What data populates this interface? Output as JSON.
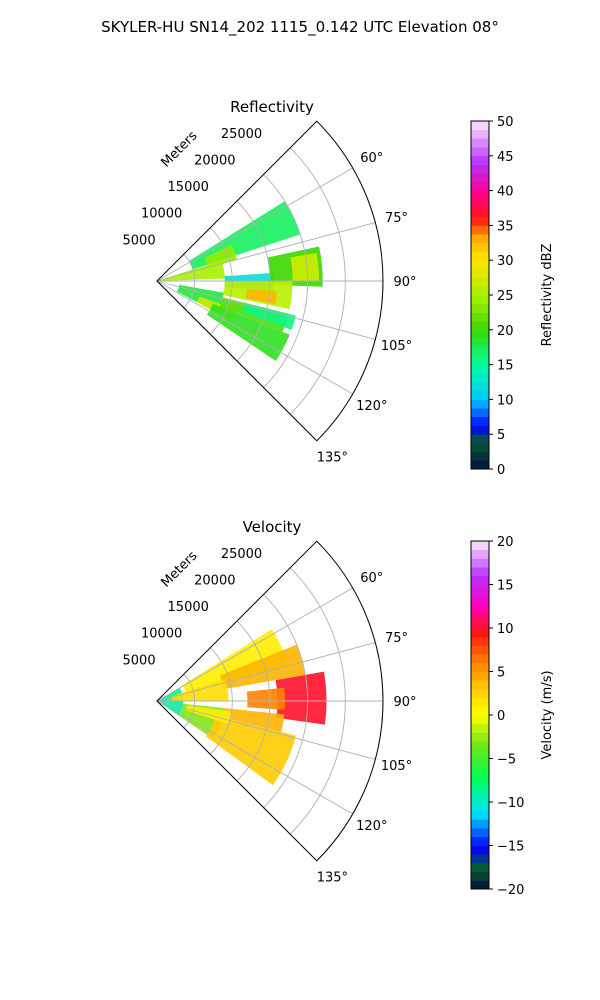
{
  "figure": {
    "suptitle": "SKYLER-HU  SN14_202  1115_0.142 UTC Elevation 08°"
  },
  "chart_data": [
    {
      "type": "heatmap",
      "title": "Reflectivity",
      "projection": "polar sector (PPI)",
      "radial_axis_label": "Meters",
      "radial_ticks": [
        5000,
        10000,
        15000,
        20000,
        25000
      ],
      "radial_tick_labels": [
        "5000",
        "10000",
        "15000",
        "20000",
        "25000"
      ],
      "rlim": [
        0,
        30000
      ],
      "azimuth_range_deg": [
        45,
        135
      ],
      "azimuth_ticks_deg": [
        60,
        75,
        90,
        105,
        120,
        135
      ],
      "azimuth_tick_labels": [
        "60°",
        "75°",
        "90°",
        "105°",
        "120°",
        "135°"
      ],
      "grid": true,
      "colorbar": {
        "label": "Reflectivity dBZ",
        "range": [
          0,
          50
        ],
        "ticks": [
          0,
          5,
          10,
          15,
          20,
          25,
          30,
          35,
          40,
          45,
          50
        ],
        "tick_labels": [
          "0",
          "5",
          "10",
          "15",
          "20",
          "25",
          "30",
          "35",
          "40",
          "45",
          "50"
        ],
        "placement": "right"
      },
      "echo_regions": [
        {
          "az": [
            58,
            72
          ],
          "r": [
            5000,
            20000
          ],
          "value": 17
        },
        {
          "az": [
            64,
            75
          ],
          "r": [
            7000,
            11000
          ],
          "value": 24
        },
        {
          "az": [
            72,
            88
          ],
          "r": [
            0,
            9000
          ],
          "value": 25
        },
        {
          "az": [
            86,
            95
          ],
          "r": [
            9000,
            15500
          ],
          "value": 12
        },
        {
          "az": [
            78,
            92
          ],
          "r": [
            15000,
            22000
          ],
          "value": 20
        },
        {
          "az": [
            80,
            90
          ],
          "r": [
            18000,
            21500
          ],
          "value": 27
        },
        {
          "az": [
            90,
            102
          ],
          "r": [
            9000,
            18000
          ],
          "value": 26
        },
        {
          "az": [
            95,
            101
          ],
          "r": [
            12000,
            16000
          ],
          "value": 33
        },
        {
          "az": [
            100,
            118
          ],
          "r": [
            3000,
            9000
          ],
          "value": 18
        },
        {
          "az": [
            110,
            118
          ],
          "r": [
            6000,
            11000
          ],
          "value": 27
        },
        {
          "az": [
            104,
            112
          ],
          "r": [
            9000,
            18000
          ],
          "value": 21
        },
        {
          "az": [
            112,
            124
          ],
          "r": [
            8000,
            19000
          ],
          "value": 19
        },
        {
          "az": [
            104,
            110
          ],
          "r": [
            12000,
            19000
          ],
          "value": 16
        }
      ]
    },
    {
      "type": "heatmap",
      "title": "Velocity",
      "projection": "polar sector (PPI)",
      "radial_axis_label": "Meters",
      "radial_ticks": [
        5000,
        10000,
        15000,
        20000,
        25000
      ],
      "radial_tick_labels": [
        "5000",
        "10000",
        "15000",
        "20000",
        "25000"
      ],
      "rlim": [
        0,
        30000
      ],
      "azimuth_range_deg": [
        45,
        135
      ],
      "azimuth_ticks_deg": [
        60,
        75,
        90,
        105,
        120,
        135
      ],
      "azimuth_tick_labels": [
        "60°",
        "75°",
        "90°",
        "105°",
        "120°",
        "135°"
      ],
      "grid": true,
      "colorbar": {
        "label": "Velocity (m/s)",
        "range": [
          -20,
          20
        ],
        "ticks": [
          -20,
          -15,
          -10,
          -5,
          0,
          5,
          10,
          15,
          20
        ],
        "tick_labels": [
          "−20",
          "−15",
          "−10",
          "−5",
          "0",
          "5",
          "10",
          "15",
          "20"
        ],
        "placement": "right"
      },
      "echo_regions": [
        {
          "az": [
            60,
            124
          ],
          "r": [
            0,
            3500
          ],
          "value": -9
        },
        {
          "az": [
            96,
            124
          ],
          "r": [
            3500,
            9000
          ],
          "value": -3
        },
        {
          "az": [
            58,
            75
          ],
          "r": [
            4000,
            18000
          ],
          "value": 1
        },
        {
          "az": [
            68,
            80
          ],
          "r": [
            9000,
            20000
          ],
          "value": 4
        },
        {
          "az": [
            72,
            90
          ],
          "r": [
            2000,
            9500
          ],
          "value": 2
        },
        {
          "az": [
            80,
            98
          ],
          "r": [
            16000,
            22500
          ],
          "value": 10
        },
        {
          "az": [
            84,
            94
          ],
          "r": [
            12000,
            17000
          ],
          "value": 6
        },
        {
          "az": [
            96,
            104
          ],
          "r": [
            9000,
            17000
          ],
          "value": 4
        },
        {
          "az": [
            104,
            126
          ],
          "r": [
            8000,
            19000
          ],
          "value": 3
        },
        {
          "az": [
            98,
            108
          ],
          "r": [
            4000,
            10000
          ],
          "value": 1
        }
      ]
    }
  ]
}
